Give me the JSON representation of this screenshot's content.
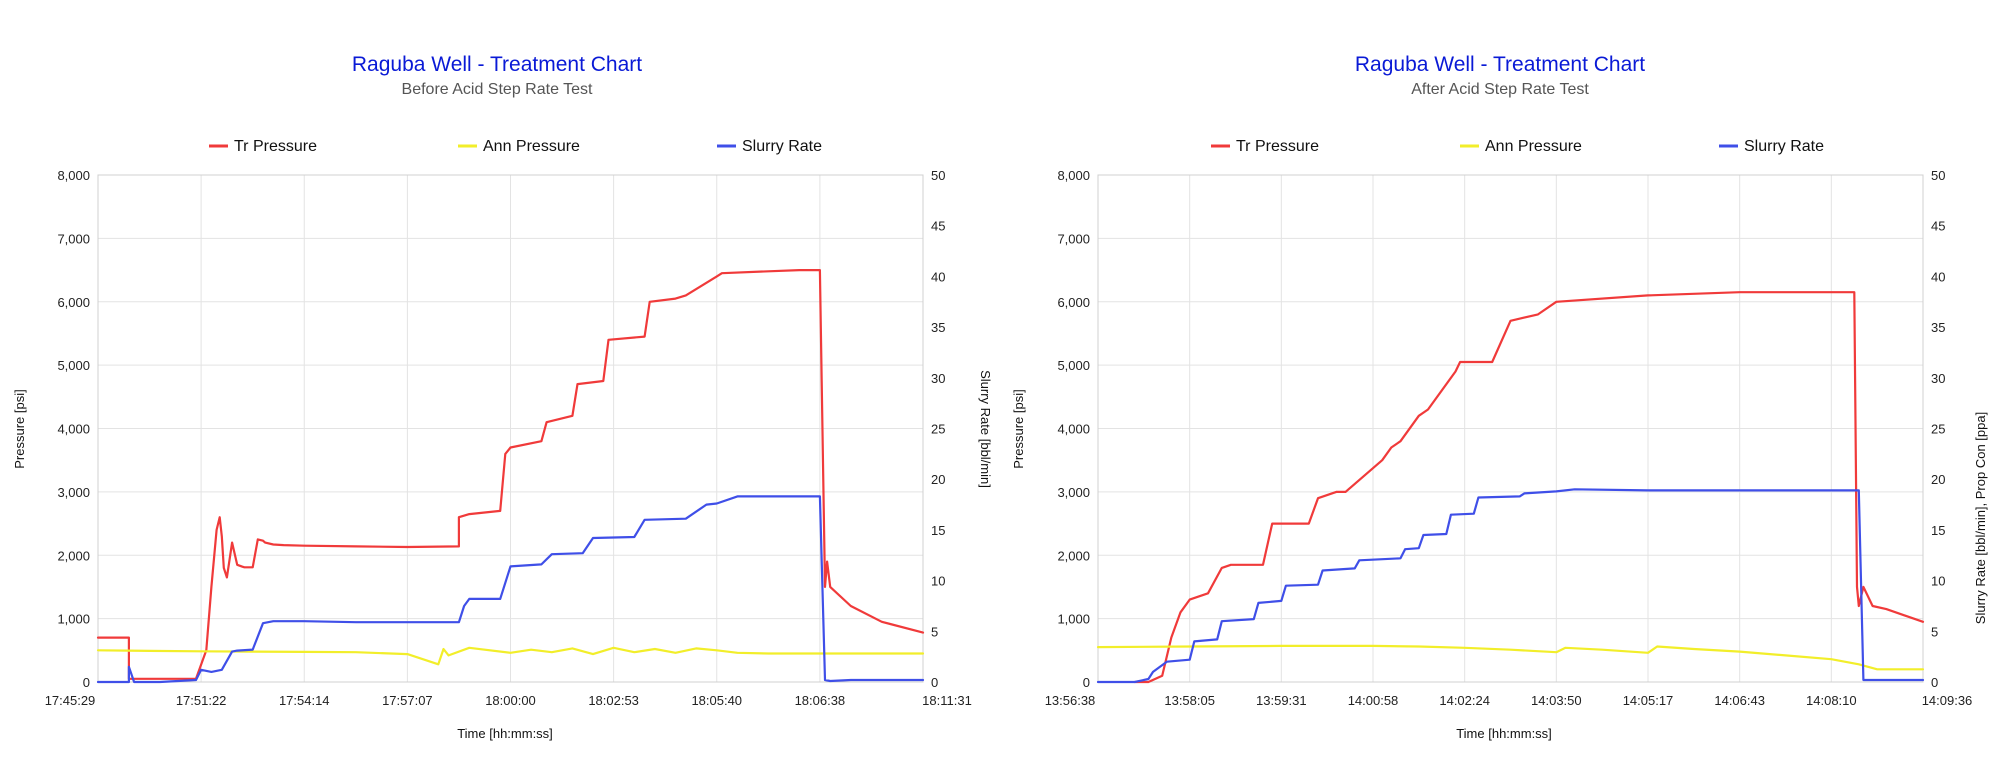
{
  "chart_data": [
    {
      "type": "line",
      "title": "Raguba Well - Treatment Chart",
      "subtitle": "Before Acid Step Rate Test",
      "xlabel": "Time [hh:mm:ss]",
      "ylabel_left": "Pressure [psi]",
      "ylabel_right": "Slurry Rate [bbl/min]",
      "y_left_range": [
        0,
        8000
      ],
      "y_right_range": [
        0,
        50
      ],
      "left_ticks": [
        "0",
        "1,000",
        "2,000",
        "3,000",
        "4,000",
        "5,000",
        "6,000",
        "7,000",
        "8,000"
      ],
      "right_ticks": [
        "0",
        "5",
        "10",
        "15",
        "20",
        "25",
        "30",
        "35",
        "40",
        "45",
        "50"
      ],
      "x_ticks": [
        "17:45:29",
        "17:51:22",
        "17:54:14",
        "17:57:07",
        "18:00:00",
        "18:02:53",
        "18:05:40",
        "18:06:38",
        "18:11:31"
      ],
      "grid": true,
      "legend_position": "top",
      "series": [
        {
          "name": "Tr Pressure",
          "axis": "left",
          "color": "#f03a3a",
          "x": [
            0,
            0.3,
            0.3,
            0.95,
            1.05,
            1.1,
            1.15,
            1.18,
            1.2,
            1.22,
            1.25,
            1.3,
            1.35,
            1.4,
            1.42,
            1.5,
            1.55,
            1.6,
            1.62,
            1.7,
            1.8,
            2.0,
            2.5,
            3.0,
            3.5,
            3.5,
            3.6,
            3.9,
            3.95,
            4.0,
            4.3,
            4.35,
            4.6,
            4.65,
            4.9,
            4.95,
            5.3,
            5.35,
            5.6,
            5.7,
            6.0,
            6.05,
            6.5,
            6.8,
            7.0,
            7.05,
            7.07,
            7.1,
            7.3,
            7.6,
            8.0
          ],
          "y": [
            700,
            700,
            50,
            50,
            500,
            1500,
            2400,
            2600,
            2300,
            1800,
            1650,
            2200,
            1850,
            1820,
            1810,
            1810,
            2250,
            2230,
            2200,
            2170,
            2160,
            2150,
            2140,
            2130,
            2140,
            2600,
            2650,
            2700,
            3600,
            3700,
            3800,
            4100,
            4200,
            4700,
            4750,
            5400,
            5450,
            6000,
            6050,
            6100,
            6400,
            6450,
            6480,
            6500,
            6500,
            1500,
            1900,
            1500,
            1200,
            950,
            780
          ]
        },
        {
          "name": "Ann Pressure",
          "axis": "left",
          "color": "#f2ee2a",
          "x": [
            0,
            0.5,
            1.0,
            1.5,
            2.0,
            2.5,
            3.0,
            3.3,
            3.35,
            3.4,
            3.6,
            4.0,
            4.2,
            4.4,
            4.6,
            4.8,
            5.0,
            5.2,
            5.4,
            5.6,
            5.8,
            6.0,
            6.2,
            6.5,
            7.0,
            7.5,
            8.0
          ],
          "y": [
            500,
            490,
            485,
            480,
            475,
            470,
            440,
            280,
            520,
            420,
            540,
            460,
            510,
            470,
            530,
            440,
            540,
            470,
            520,
            460,
            530,
            500,
            460,
            450,
            450,
            450,
            450
          ]
        },
        {
          "name": "Slurry Rate",
          "axis": "right",
          "color": "#3f4fe8",
          "x": [
            0,
            0.3,
            0.3,
            0.35,
            0.4,
            0.6,
            0.95,
            1.0,
            1.1,
            1.2,
            1.3,
            1.35,
            1.5,
            1.6,
            1.7,
            2.0,
            2.5,
            3.0,
            3.5,
            3.55,
            3.6,
            3.9,
            4.0,
            4.3,
            4.4,
            4.7,
            4.8,
            5.2,
            5.3,
            5.7,
            5.9,
            6.0,
            6.2,
            7.0,
            7.05,
            7.1,
            7.3,
            8.0
          ],
          "y": [
            0,
            0,
            1.5,
            0,
            0,
            0,
            0.2,
            1.2,
            1.0,
            1.2,
            3.0,
            3.1,
            3.2,
            5.8,
            6.0,
            6.0,
            5.9,
            5.9,
            5.9,
            7.5,
            8.2,
            8.2,
            11.4,
            11.6,
            12.6,
            12.7,
            14.2,
            14.3,
            16.0,
            16.1,
            17.5,
            17.6,
            18.3,
            18.3,
            0.2,
            0.1,
            0.2,
            0.2
          ]
        }
      ]
    },
    {
      "type": "line",
      "title": "Raguba Well - Treatment Chart",
      "subtitle": "After Acid Step Rate Test",
      "xlabel": "Time [hh:mm:ss]",
      "ylabel_left": "Pressure [psi]",
      "ylabel_right": "Slurry Rate [bbl/min], Prop Con [ppa]",
      "y_left_range": [
        0,
        8000
      ],
      "y_right_range": [
        0,
        50
      ],
      "left_ticks": [
        "0",
        "1,000",
        "2,000",
        "3,000",
        "4,000",
        "5,000",
        "6,000",
        "7,000",
        "8,000"
      ],
      "right_ticks": [
        "0",
        "5",
        "10",
        "15",
        "20",
        "25",
        "30",
        "35",
        "40",
        "45",
        "50"
      ],
      "x_ticks": [
        "13:56:38",
        "13:58:05",
        "13:59:31",
        "14:00:58",
        "14:02:24",
        "14:03:50",
        "14:05:17",
        "14:06:43",
        "14:08:10",
        "14:09:36"
      ],
      "grid": true,
      "legend_position": "top",
      "series": [
        {
          "name": "Tr Pressure",
          "axis": "left",
          "color": "#f03a3a",
          "x": [
            0.4,
            0.55,
            0.7,
            0.8,
            0.9,
            1.0,
            1.2,
            1.35,
            1.45,
            1.8,
            1.9,
            2.3,
            2.4,
            2.6,
            2.7,
            3.1,
            3.2,
            3.3,
            3.5,
            3.6,
            3.9,
            3.95,
            4.3,
            4.5,
            4.8,
            5.0,
            6.0,
            7.0,
            8.0,
            8.25,
            8.28,
            8.3,
            8.35,
            8.45,
            8.6,
            9.0
          ],
          "y": [
            0,
            0,
            100,
            700,
            1100,
            1300,
            1400,
            1800,
            1850,
            1850,
            2500,
            2500,
            2900,
            3000,
            3000,
            3500,
            3700,
            3800,
            4200,
            4300,
            4900,
            5050,
            5050,
            5700,
            5800,
            6000,
            6100,
            6150,
            6150,
            6150,
            1500,
            1200,
            1500,
            1200,
            1150,
            950
          ]
        },
        {
          "name": "Ann Pressure",
          "axis": "left",
          "color": "#f2ee2a",
          "x": [
            0,
            1,
            2,
            3,
            3.5,
            4,
            4.5,
            5,
            5.1,
            5.5,
            6,
            6.1,
            6.5,
            7,
            7.5,
            8,
            8.3,
            8.5,
            9
          ],
          "y": [
            550,
            560,
            570,
            570,
            560,
            540,
            510,
            470,
            540,
            510,
            460,
            560,
            520,
            480,
            420,
            360,
            280,
            200,
            200
          ]
        },
        {
          "name": "Slurry Rate",
          "axis": "right",
          "color": "#3f4fe8",
          "x": [
            0,
            0.4,
            0.55,
            0.6,
            0.75,
            1.0,
            1.05,
            1.3,
            1.35,
            1.7,
            1.75,
            2.0,
            2.05,
            2.4,
            2.45,
            2.8,
            2.85,
            3.3,
            3.35,
            3.5,
            3.55,
            3.8,
            3.85,
            4.1,
            4.15,
            4.6,
            4.65,
            5.0,
            5.2,
            6.0,
            7.0,
            8.0,
            8.3,
            8.35,
            9.0
          ],
          "y": [
            0,
            0,
            0.3,
            1.0,
            2.0,
            2.2,
            4.0,
            4.2,
            6.0,
            6.2,
            7.8,
            8.0,
            9.5,
            9.6,
            11.0,
            11.2,
            12.0,
            12.2,
            13.1,
            13.2,
            14.5,
            14.6,
            16.5,
            16.6,
            18.2,
            18.3,
            18.6,
            18.8,
            19.0,
            18.9,
            18.9,
            18.9,
            18.9,
            0.2,
            0.2
          ]
        }
      ]
    }
  ]
}
